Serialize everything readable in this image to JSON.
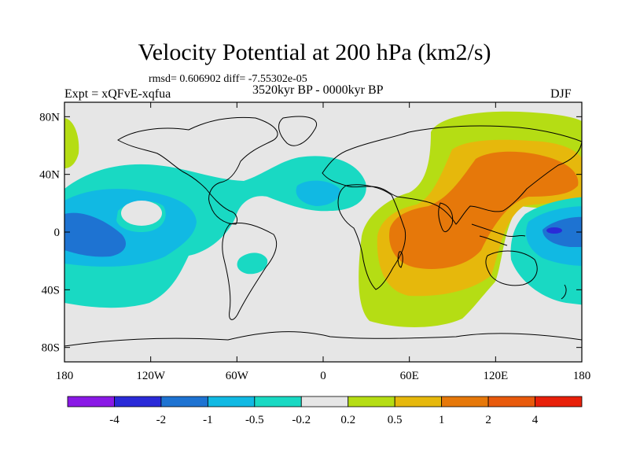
{
  "title": "Velocity Potential at 200 hPa (km2/s)",
  "stats": "rmsd= 0.606902 diff= -7.55302e-05",
  "experiment": "Expt = xQFvE-xqfua",
  "period": "3520kyr BP - 0000kyr BP",
  "season": "DJF",
  "axes": {
    "lon_ticks": [
      {
        "value": -180,
        "label": "180"
      },
      {
        "value": -120,
        "label": "120W"
      },
      {
        "value": -60,
        "label": "60W"
      },
      {
        "value": 0,
        "label": "0"
      },
      {
        "value": 60,
        "label": "60E"
      },
      {
        "value": 120,
        "label": "120E"
      },
      {
        "value": 180,
        "label": "180"
      }
    ],
    "lat_ticks": [
      {
        "value": 80,
        "label": "80N"
      },
      {
        "value": 40,
        "label": "40N"
      },
      {
        "value": 0,
        "label": "0"
      },
      {
        "value": -40,
        "label": "40S"
      },
      {
        "value": -80,
        "label": "80S"
      }
    ],
    "lon_range": [
      -180,
      180
    ],
    "lat_range": [
      -90,
      90
    ]
  },
  "colorbar": {
    "colors": [
      "#8a19e6",
      "#2a2ad8",
      "#1e73d2",
      "#11b9e3",
      "#19d9c3",
      "#e6e6e6",
      "#b5dd14",
      "#e6b80c",
      "#e6780a",
      "#e85a0c",
      "#e8200a"
    ],
    "labels": [
      "-4",
      "-2",
      "-1",
      "-0.5",
      "-0.2",
      "0.2",
      "0.5",
      "1",
      "2",
      "4"
    ]
  }
}
